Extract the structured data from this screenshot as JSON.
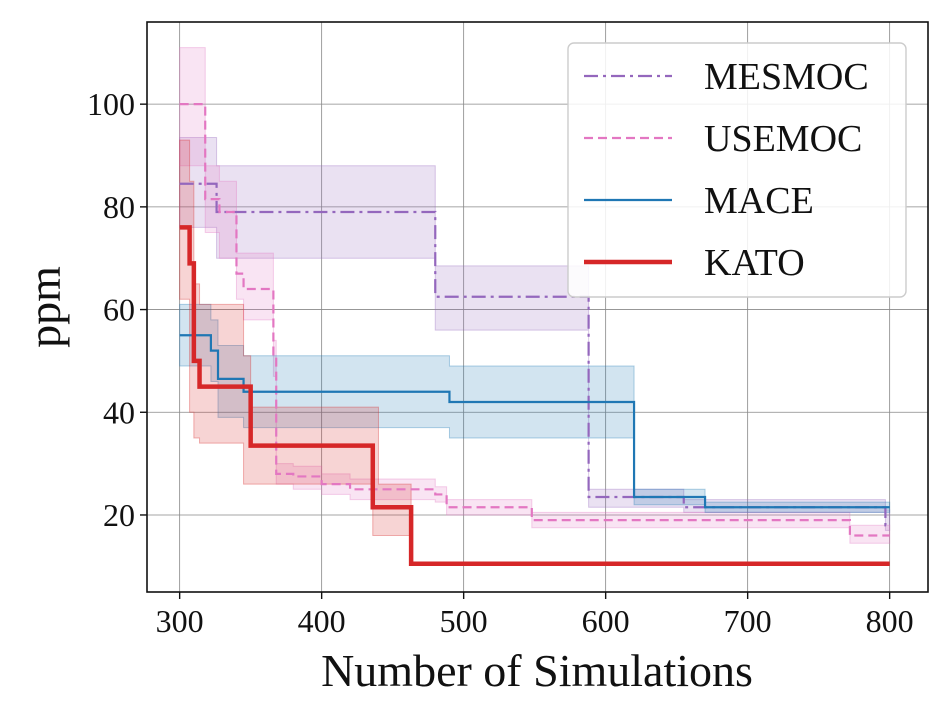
{
  "chart_data": {
    "type": "line",
    "title": "",
    "xlabel": "Number of Simulations",
    "ylabel": "ppm",
    "xlim": [
      277,
      827
    ],
    "ylim": [
      5,
      116
    ],
    "xticks": [
      300,
      400,
      500,
      600,
      700,
      800
    ],
    "yticks": [
      20,
      40,
      60,
      80,
      100
    ],
    "grid": true,
    "legend_position": "top-right",
    "series": [
      {
        "name": "MESMOC",
        "color": "#9467bd",
        "dash": "dashdot",
        "step_x": [
          300,
          322,
          326,
          480,
          588,
          655,
          657,
          797,
          800
        ],
        "mean": [
          84.5,
          84.5,
          79,
          62.5,
          23.5,
          21.5,
          21.5,
          18,
          18
        ],
        "lower": [
          76,
          76,
          70,
          56,
          21.5,
          20.5,
          20.5,
          17,
          17
        ],
        "upper": [
          93.5,
          93.5,
          88,
          68.5,
          25,
          23,
          23,
          21,
          21
        ]
      },
      {
        "name": "USEMOC",
        "color": "#e377c2",
        "dash": "dashed",
        "step_x": [
          300,
          318,
          328,
          340,
          345,
          366,
          368,
          380,
          400,
          420,
          480,
          488,
          548,
          550,
          745,
          772,
          775,
          800
        ],
        "mean": [
          100,
          81.5,
          79,
          67,
          64,
          51,
          28,
          27.5,
          26,
          25,
          24,
          21.5,
          19,
          19,
          19,
          16,
          16,
          16
        ],
        "lower": [
          88,
          75,
          70,
          62,
          58,
          47,
          26,
          25,
          24,
          23,
          22.5,
          20,
          17.5,
          17.5,
          17.5,
          14.5,
          14.5,
          14.5
        ],
        "upper": [
          111,
          88,
          85,
          71,
          71,
          54,
          30,
          29.5,
          28,
          27,
          25.5,
          23,
          20.5,
          20.5,
          20.5,
          18,
          18,
          18
        ]
      },
      {
        "name": "MACE",
        "color": "#1f77b4",
        "dash": "solid",
        "step_x": [
          300,
          317,
          322,
          327,
          345,
          348,
          490,
          620,
          625,
          670,
          800
        ],
        "mean": [
          55,
          55,
          52,
          46.5,
          44,
          44,
          42,
          23.5,
          23.5,
          21.5,
          21.5
        ],
        "lower": [
          49,
          49,
          46,
          39,
          37,
          37,
          35,
          22,
          22,
          20.5,
          20.5
        ],
        "upper": [
          61,
          61,
          58,
          53,
          51,
          51,
          49,
          25,
          25,
          22.5,
          22.5
        ]
      },
      {
        "name": "KATO",
        "color": "#d62728",
        "dash": "solid",
        "step_x": [
          300,
          307,
          310,
          314,
          345,
          350,
          436,
          440,
          463,
          466,
          800
        ],
        "mean": [
          76,
          69,
          50,
          45,
          45,
          33.5,
          21.5,
          21.5,
          10.5,
          10.5,
          10.5
        ],
        "lower": [
          62,
          40,
          35,
          34,
          26,
          26,
          16,
          16,
          10.5,
          10.5,
          10.5
        ],
        "upper": [
          93,
          85,
          65,
          61,
          51,
          41,
          41,
          26,
          10.5,
          10.5,
          10.5
        ]
      }
    ],
    "legend_entries": [
      "MESMOC",
      "USEMOC",
      "MACE",
      "KATO"
    ]
  }
}
